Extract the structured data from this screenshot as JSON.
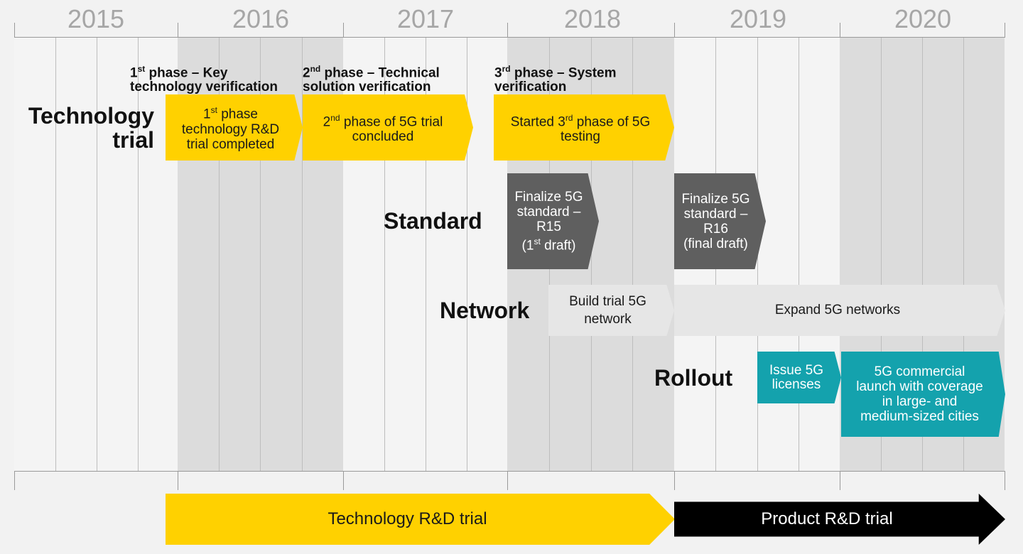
{
  "years": [
    "2015",
    "2016",
    "2017",
    "2018",
    "2019",
    "2020"
  ],
  "rows": {
    "technology": "Technology\ntrial",
    "standard": "Standard",
    "network": "Network",
    "rollout": "Rollout"
  },
  "phases": [
    {
      "ordinal": "1",
      "sup": "st",
      "title": " phase – Key",
      "line2": "technology verification"
    },
    {
      "ordinal": "2",
      "sup": "nd",
      "title": " phase – Technical",
      "line2": "solution verification"
    },
    {
      "ordinal": "3",
      "sup": "rd",
      "title": " phase – System",
      "line2": "verification"
    }
  ],
  "tech_boxes": [
    {
      "l1a": "1",
      "sup": "st",
      "l1b": " phase",
      "rest": "technology R&D\ntrial completed"
    },
    {
      "l1a": "2",
      "sup": "nd",
      "l1b": " phase of 5G trial",
      "rest": "concluded"
    },
    {
      "l1a": "Started 3",
      "sup": "rd",
      "l1b": " phase of 5G",
      "rest": "testing"
    }
  ],
  "standard_boxes": [
    {
      "text": "Finalize 5G\nstandard –\nR15",
      "l4a": "(1",
      "sup": "st",
      "l4b": " draft)"
    },
    {
      "text": "Finalize 5G\nstandard –\nR16\n(final draft)"
    }
  ],
  "network_boxes": [
    "Build trial 5G\nnetwork",
    "Expand 5G networks"
  ],
  "rollout_boxes": [
    "Issue 5G\nlicenses",
    "5G commercial\nlaunch with coverage\nin large- and\nmedium-sized cities"
  ],
  "bottom": {
    "tech_rd": "Technology R&D trial",
    "product_rd": "Product R&D trial"
  },
  "colors": {
    "yellow": "#ffd100",
    "dark_gray": "#5f5f5f",
    "light_gray": "#e6e6e6",
    "teal": "#14a2ad",
    "black": "#000000",
    "year_text": "#a6a6a6"
  }
}
